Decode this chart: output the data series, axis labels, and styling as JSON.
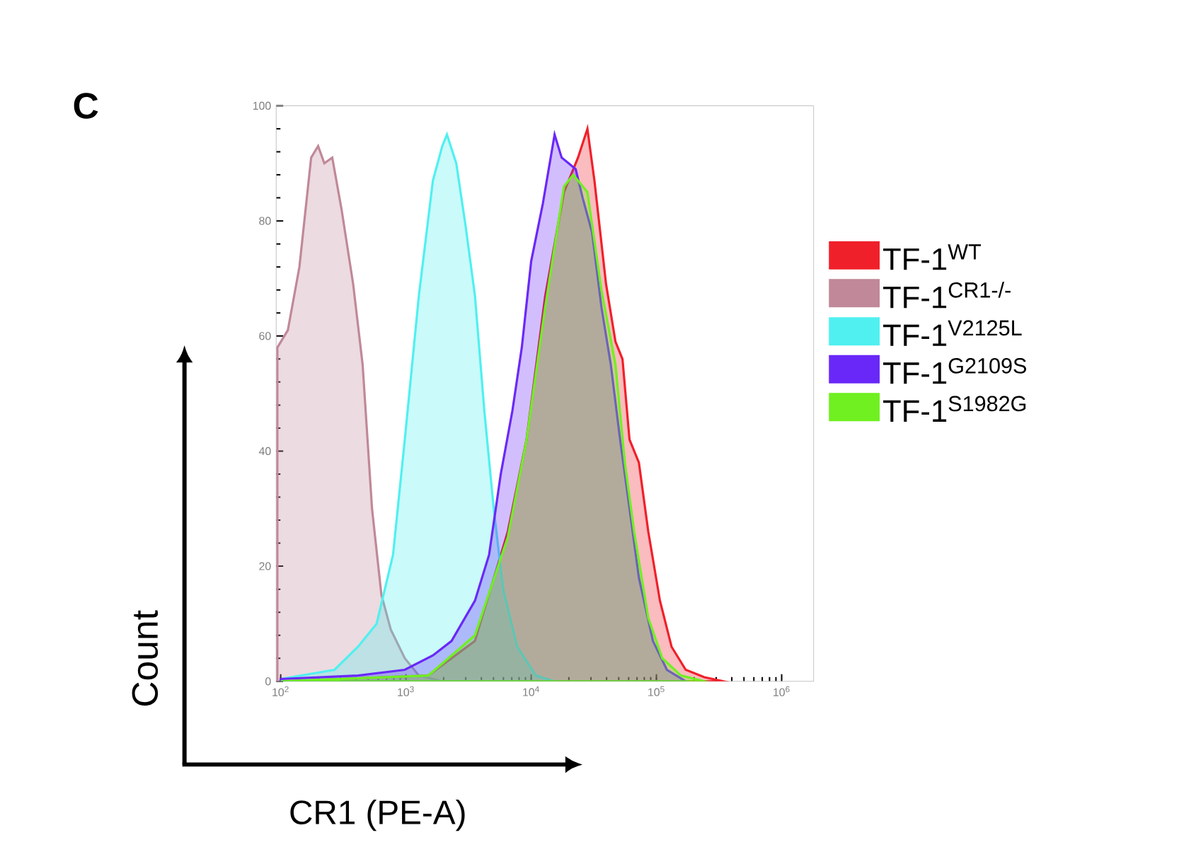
{
  "chart_data": {
    "type": "area",
    "xlabel": "CR1 (PE-A)",
    "ylabel": "Count",
    "annotations": [
      "C"
    ],
    "log": "x",
    "xlim": [
      92,
      1800000
    ],
    "ylim": [
      0,
      100
    ],
    "xticks": [
      {
        "value": 100,
        "label": "10$^{2}$"
      },
      {
        "value": 1000,
        "label": "10$^{3}$"
      },
      {
        "value": 10000,
        "label": "10$^{4}$"
      },
      {
        "value": 100000,
        "label": "10$^{5}$"
      },
      {
        "value": 1000000,
        "label": "10$^{6}$"
      }
    ],
    "yticks": [
      0,
      20,
      40,
      60,
      80,
      100
    ],
    "legend": "right",
    "series": [
      {
        "name": "TF-1$^{WT}$",
        "color": "#f0202a",
        "x": [
          100,
          1507,
          3556,
          6501,
          9183,
          12940,
          18280,
          23660,
          28120,
          31990,
          39630,
          47100,
          53580,
          60950,
          72440,
          86100,
          106700,
          132100,
          171400,
          241500,
          341200
        ],
        "values": [
          0,
          1,
          7,
          26,
          42,
          67,
          85,
          91,
          96,
          87,
          69,
          59,
          56,
          42,
          38,
          26,
          14,
          6,
          2,
          0.7,
          0
        ]
      },
      {
        "name": "TF-1$^{CR1-/-}$",
        "color": "#c08898",
        "x": [
          94,
          114,
          141,
          175,
          199,
          223,
          258,
          306,
          379,
          451,
          536,
          637,
          757,
          979,
          1268,
          1950
        ],
        "values": [
          58,
          61,
          72,
          91,
          93,
          90,
          91,
          82,
          69,
          55,
          30,
          15,
          9,
          4,
          1,
          0
        ]
      },
      {
        "name": "TF-1$^{V2125L}$",
        "color": "#50f0f0",
        "x": [
          100,
          269,
          414,
          583,
          789,
          979,
          1268,
          1641,
          1950,
          2125,
          2523,
          2999,
          3556,
          4227,
          5023,
          5970,
          7727,
          10890,
          15380
        ],
        "values": [
          0.4,
          2,
          6,
          10,
          22,
          42,
          67,
          87,
          93,
          95,
          90,
          79,
          67,
          47,
          30,
          16,
          6,
          1,
          0
        ]
      },
      {
        "name": "TF-1$^{G2109S}$",
        "color": "#6a28f8",
        "x": [
          100,
          414,
          979,
          1641,
          2312,
          3556,
          4613,
          5715,
          7079,
          8414,
          10000,
          12390,
          15380,
          17500,
          19910,
          22650,
          25760,
          30620,
          36390,
          43250,
          51290,
          60950,
          72440,
          93760,
          121300,
          171400
        ],
        "values": [
          0.4,
          1,
          2,
          4.5,
          7,
          14,
          22,
          36,
          47,
          58,
          73,
          83,
          95,
          91,
          90,
          89,
          84,
          78,
          65,
          55,
          42,
          30,
          18,
          7,
          2,
          0
        ]
      },
      {
        "name": "TF-1$^{S1982G}$",
        "color": "#70f020",
        "x": [
          100,
          1507,
          3556,
          6501,
          9183,
          12940,
          18280,
          21670,
          28120,
          36390,
          47100,
          55980,
          66370,
          86100,
          111400,
          157000,
          241500
        ],
        "values": [
          0,
          1,
          8,
          25,
          42,
          65,
          86,
          88,
          85,
          68,
          55,
          38,
          26,
          11,
          4,
          1,
          0
        ]
      }
    ]
  }
}
